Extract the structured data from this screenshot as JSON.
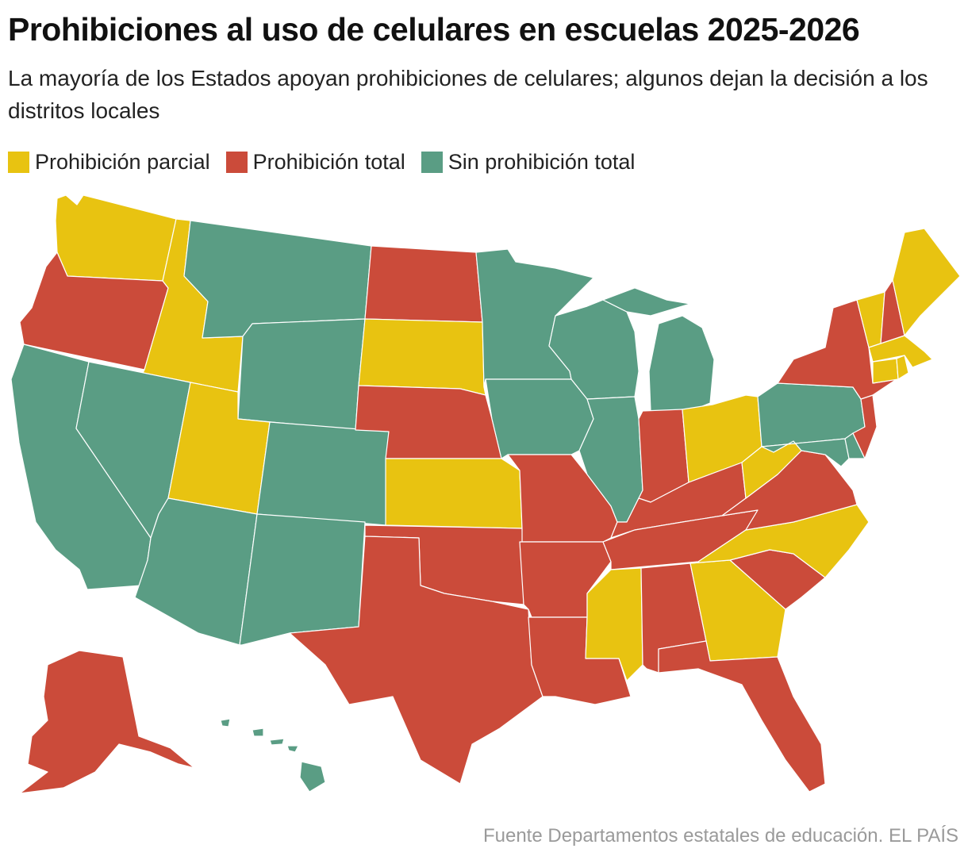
{
  "title": "Prohibiciones al uso de celulares en escuelas 2025-2026",
  "subtitle": "La mayoría de los Estados apoyan prohibiciones de celulares; algunos dejan la decisión a los distritos locales",
  "legend": [
    {
      "key": "parcial",
      "label": "Prohibición parcial",
      "color": "#e8c311"
    },
    {
      "key": "total",
      "label": "Prohibición total",
      "color": "#cb4b3a"
    },
    {
      "key": "sin",
      "label": "Sin prohibición total",
      "color": "#5a9d84"
    }
  ],
  "source": "Fuente Departamentos estatales de educación. EL PAÍS",
  "map": {
    "parcial": [
      "WA",
      "ID",
      "UT",
      "SD",
      "KS",
      "OH",
      "WV",
      "NC",
      "MS",
      "GA",
      "VT",
      "ME",
      "MA",
      "CT",
      "RI"
    ],
    "total": [
      "OR",
      "ND",
      "NE",
      "OK",
      "TX",
      "MO",
      "AR",
      "LA",
      "IN",
      "KY",
      "TN",
      "AL",
      "FL",
      "SC",
      "VA",
      "NY",
      "NH",
      "NJ",
      "AK"
    ],
    "sin": [
      "CA",
      "NV",
      "AZ",
      "MT",
      "WY",
      "CO",
      "NM",
      "MN",
      "IA",
      "WI",
      "IL",
      "MI",
      "PA",
      "MD",
      "DE",
      "HI"
    ]
  }
}
